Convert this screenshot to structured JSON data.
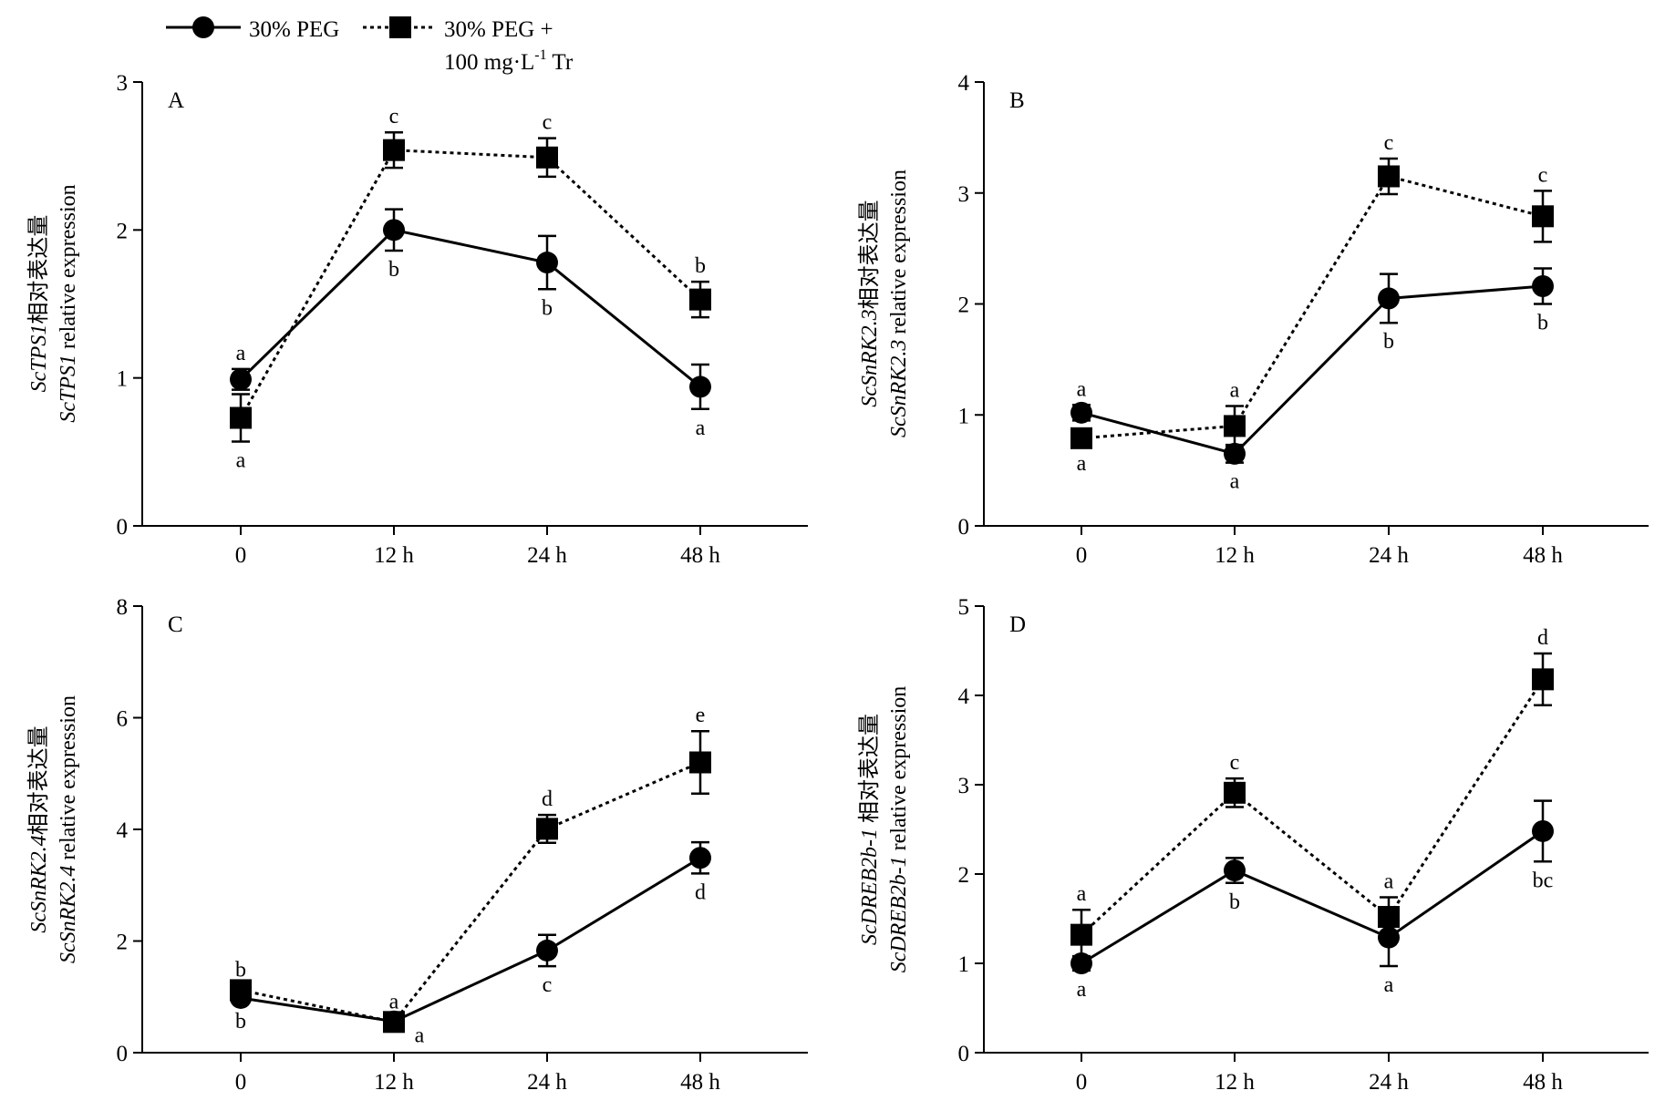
{
  "legend": [
    {
      "name": "30% PEG",
      "marker": "circle",
      "line": "solid"
    },
    {
      "name_line1": "30% PEG +",
      "name_line2_prefix": "100 mg·L",
      "name_line2_sup": "-1",
      "name_line2_suffix": " Tr",
      "marker": "square",
      "line": "dotted"
    }
  ],
  "chart_data": [
    {
      "type": "line",
      "panel_label": "A",
      "categories": [
        "0",
        "12 h",
        "24 h",
        "48 h"
      ],
      "ylim": [
        0,
        3
      ],
      "yticks": [
        0,
        1,
        2,
        3
      ],
      "ylabel_line1_italic": "ScTPS1",
      "ylabel_line1_rest": "相对表达量",
      "ylabel_line2_italic": "ScTPS1",
      "ylabel_line2_rest": " relative expression",
      "series": [
        {
          "name": "30% PEG",
          "values": [
            0.99,
            2.0,
            1.78,
            0.94
          ],
          "errors": [
            0.07,
            0.14,
            0.18,
            0.15
          ],
          "letters": [
            "a",
            "b",
            "b",
            "a"
          ],
          "letter_pos": [
            "above",
            "below",
            "below",
            "below"
          ]
        },
        {
          "name": "30% PEG + 100 mg·L-1 Tr",
          "values": [
            0.73,
            2.54,
            2.49,
            1.53
          ],
          "errors": [
            0.16,
            0.12,
            0.13,
            0.12
          ],
          "letters": [
            "a",
            "c",
            "c",
            "b"
          ],
          "letter_pos": [
            "below",
            "above",
            "above",
            "above"
          ]
        }
      ]
    },
    {
      "type": "line",
      "panel_label": "B",
      "categories": [
        "0",
        "12 h",
        "24 h",
        "48 h"
      ],
      "ylim": [
        0,
        4
      ],
      "yticks": [
        0,
        1,
        2,
        3,
        4
      ],
      "ylabel_line1_italic": "ScSnRK2.3",
      "ylabel_line1_rest": "相对表达量",
      "ylabel_line2_italic": "ScSnRK2.3",
      "ylabel_line2_rest": " relative expression",
      "series": [
        {
          "name": "30% PEG",
          "values": [
            1.02,
            0.65,
            2.05,
            2.16
          ],
          "errors": [
            0.07,
            0.08,
            0.22,
            0.16
          ],
          "letters": [
            "a",
            "a",
            "b",
            "b"
          ],
          "letter_pos": [
            "above",
            "below",
            "below",
            "below"
          ]
        },
        {
          "name": "30% PEG + 100 mg·L-1 Tr",
          "values": [
            0.79,
            0.9,
            3.15,
            2.79
          ],
          "errors": [
            0.06,
            0.18,
            0.16,
            0.23
          ],
          "letters": [
            "a",
            "a",
            "c",
            "c"
          ],
          "letter_pos": [
            "below",
            "above",
            "above",
            "above"
          ]
        }
      ]
    },
    {
      "type": "line",
      "panel_label": "C",
      "categories": [
        "0",
        "12 h",
        "24 h",
        "48 h"
      ],
      "ylim": [
        0,
        8
      ],
      "yticks": [
        0,
        2,
        4,
        6,
        8
      ],
      "ylabel_line1_italic": "ScSnRK2.4",
      "ylabel_line1_rest": "相对表达量",
      "ylabel_line2_italic": "ScSnRK2.4",
      "ylabel_line2_rest": " relative expression",
      "series": [
        {
          "name": "30% PEG",
          "values": [
            0.98,
            0.56,
            1.83,
            3.49
          ],
          "errors": [
            0.08,
            0.07,
            0.28,
            0.28
          ],
          "letters": [
            "b",
            "a",
            "c",
            "d"
          ],
          "letter_pos": [
            "below",
            "above",
            "below",
            "below"
          ]
        },
        {
          "name": "30% PEG + 100 mg·L-1 Tr",
          "values": [
            1.12,
            0.55,
            4.01,
            5.2
          ],
          "errors": [
            0.08,
            0.06,
            0.25,
            0.56
          ],
          "letters": [
            "b",
            "a",
            "d",
            "e"
          ],
          "letter_pos": [
            "above",
            "below",
            "above",
            "above"
          ]
        }
      ]
    },
    {
      "type": "line",
      "panel_label": "D",
      "categories": [
        "0",
        "12 h",
        "24 h",
        "48 h"
      ],
      "ylim": [
        0,
        5
      ],
      "yticks": [
        0,
        1,
        2,
        3,
        4,
        5
      ],
      "ylabel_line1_italic": "ScDREB2b-1",
      "ylabel_line1_rest": " 相对表达量",
      "ylabel_line2_italic": "ScDREB2b-1",
      "ylabel_line2_rest": " relative expression",
      "series": [
        {
          "name": "30% PEG",
          "values": [
            1.0,
            2.04,
            1.29,
            2.48
          ],
          "errors": [
            0.08,
            0.14,
            0.32,
            0.34
          ],
          "letters": [
            "a",
            "b",
            "a",
            "bc"
          ],
          "letter_pos": [
            "below",
            "below",
            "below",
            "below"
          ]
        },
        {
          "name": "30% PEG + 100 mg·L-1 Tr",
          "values": [
            1.32,
            2.91,
            1.52,
            4.18
          ],
          "errors": [
            0.28,
            0.16,
            0.22,
            0.29
          ],
          "letters": [
            "a",
            "c",
            "a",
            "d"
          ],
          "letter_pos": [
            "above",
            "above",
            "above",
            "above"
          ]
        }
      ]
    }
  ]
}
